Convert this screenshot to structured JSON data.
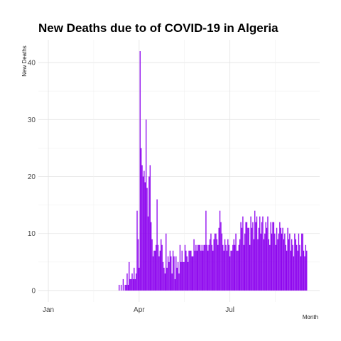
{
  "chart_data": {
    "type": "bar",
    "title": "New Deaths due to of COVID-19 in Algeria",
    "xlabel": "Month",
    "ylabel": "New Deaths",
    "x_start_date": "2020-01-01",
    "x_ticks": [
      {
        "label": "Jan",
        "date": "2020-01-01"
      },
      {
        "label": "Apr",
        "date": "2020-04-01"
      },
      {
        "label": "Jul",
        "date": "2020-07-01"
      }
    ],
    "xlim": [
      "2019-12-22",
      "2020-09-29"
    ],
    "ylim": [
      -2,
      44
    ],
    "y_ticks": [
      0,
      10,
      20,
      30,
      40
    ],
    "grid": true,
    "bar_color": "#8B00EE",
    "data_start_date": "2020-03-12",
    "values": [
      1,
      0,
      1,
      0,
      2,
      0,
      1,
      1,
      3,
      1,
      5,
      2,
      2,
      3,
      2,
      4,
      2,
      3,
      14,
      9,
      4,
      42,
      25,
      22,
      20,
      21,
      19,
      30,
      18,
      13,
      20,
      22,
      12,
      9,
      6,
      7,
      7,
      8,
      16,
      8,
      6,
      7,
      9,
      8,
      5,
      4,
      3,
      10,
      4,
      6,
      5,
      7,
      6,
      3,
      7,
      6,
      2,
      6,
      4,
      5,
      3,
      8,
      5,
      7,
      5,
      5,
      8,
      7,
      6,
      5,
      7,
      7,
      7,
      6,
      6,
      9,
      7,
      8,
      7,
      8,
      8,
      8,
      7,
      8,
      7,
      8,
      8,
      14,
      8,
      7,
      8,
      9,
      10,
      8,
      7,
      9,
      10,
      10,
      9,
      8,
      11,
      14,
      12,
      10,
      8,
      7,
      9,
      8,
      7,
      9,
      8,
      6,
      7,
      7,
      8,
      9,
      8,
      10,
      7,
      7,
      8,
      9,
      12,
      11,
      13,
      8,
      10,
      12,
      12,
      11,
      11,
      8,
      13,
      11,
      12,
      9,
      14,
      12,
      13,
      9,
      11,
      13,
      10,
      12,
      13,
      9,
      10,
      12,
      11,
      13,
      9,
      8,
      12,
      10,
      12,
      12,
      10,
      8,
      11,
      9,
      10,
      12,
      11,
      10,
      11,
      9,
      10,
      8,
      7,
      11,
      9,
      10,
      7,
      9,
      8,
      6,
      10,
      9,
      8,
      7,
      10,
      8,
      6,
      10,
      10,
      7,
      6,
      8,
      7
    ]
  }
}
